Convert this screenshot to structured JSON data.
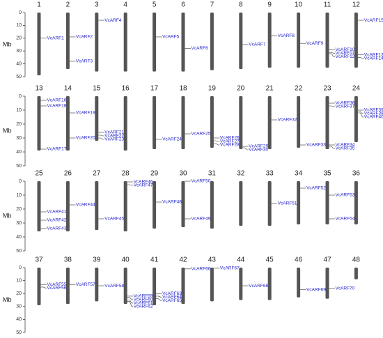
{
  "chart_data": [
    {
      "type": "chromosome",
      "ylabel": "Mb",
      "ylim": [
        0,
        50
      ],
      "yticks": [
        0,
        10,
        20,
        30,
        40,
        50
      ],
      "color": "#555555",
      "gene_color": "#2222cc",
      "chromosomes": [
        {
          "name": "1",
          "length": 49,
          "genes": [
            {
              "name": "VcARF1",
              "position": 20
            }
          ]
        },
        {
          "name": "2",
          "length": 44,
          "genes": [
            {
              "name": "VcARF2",
              "position": 19
            },
            {
              "name": "VcARF3",
              "position": 38
            }
          ]
        },
        {
          "name": "3",
          "length": 46,
          "genes": [
            {
              "name": "VcARF4",
              "position": 6
            }
          ]
        },
        {
          "name": "4",
          "length": 46,
          "genes": []
        },
        {
          "name": "5",
          "length": 46,
          "genes": [
            {
              "name": "VcARF5",
              "position": 19
            }
          ]
        },
        {
          "name": "6",
          "length": 46,
          "genes": [
            {
              "name": "VcARF6",
              "position": 28
            }
          ]
        },
        {
          "name": "7",
          "length": 45,
          "genes": []
        },
        {
          "name": "8",
          "length": 44,
          "genes": [
            {
              "name": "VcARF7",
              "position": 25
            }
          ]
        },
        {
          "name": "9",
          "length": 43,
          "genes": [
            {
              "name": "VcARF8",
              "position": 18
            }
          ]
        },
        {
          "name": "10",
          "length": 43,
          "genes": [
            {
              "name": "VcARF9",
              "position": 24
            }
          ]
        },
        {
          "name": "11",
          "length": 43,
          "genes": [
            {
              "name": "VcARF10",
              "position": 29
            },
            {
              "name": "VcARF11",
              "position": 31
            },
            {
              "name": "VcARF12",
              "position": 32
            }
          ]
        },
        {
          "name": "12",
          "length": 43,
          "genes": [
            {
              "name": "VcARF15",
              "position": 6
            },
            {
              "name": "VcARF13",
              "position": 33
            },
            {
              "name": "VcARF14",
              "position": 35
            }
          ]
        }
      ]
    },
    {
      "type": "chromosome",
      "ylabel": "Mb",
      "ylim": [
        0,
        50
      ],
      "yticks": [
        0,
        10,
        20,
        30,
        40,
        50
      ],
      "color": "#555555",
      "gene_color": "#2222cc",
      "chromosomes": [
        {
          "name": "13",
          "length": 39,
          "genes": [
            {
              "name": "VcARF16",
              "position": 3
            },
            {
              "name": "VcARF18",
              "position": 7
            },
            {
              "name": "VcARF17",
              "position": 38
            }
          ]
        },
        {
          "name": "14",
          "length": 39,
          "genes": [
            {
              "name": "VcARF19",
              "position": 12
            },
            {
              "name": "VcARF20",
              "position": 30
            }
          ]
        },
        {
          "name": "15",
          "length": 32,
          "genes": [
            {
              "name": "VcARF21",
              "position": 26
            },
            {
              "name": "VcARF22",
              "position": 28
            },
            {
              "name": "VcARF23",
              "position": 30
            }
          ]
        },
        {
          "name": "16",
          "length": 39,
          "genes": []
        },
        {
          "name": "17",
          "length": 38,
          "genes": [
            {
              "name": "VcARF24",
              "position": 31
            }
          ]
        },
        {
          "name": "18",
          "length": 38,
          "genes": [
            {
              "name": "VcARF25",
              "position": 27
            }
          ]
        },
        {
          "name": "19",
          "length": 37,
          "genes": [
            {
              "name": "VcARF26",
              "position": 30
            },
            {
              "name": "VcARF27",
              "position": 32
            },
            {
              "name": "VcARF28",
              "position": 34
            }
          ]
        },
        {
          "name": "20",
          "length": 38,
          "genes": [
            {
              "name": "VcARF29",
              "position": 36
            },
            {
              "name": "VcARF30",
              "position": 37
            }
          ]
        },
        {
          "name": "21",
          "length": 38,
          "genes": [
            {
              "name": "VcARF32",
              "position": 17
            }
          ]
        },
        {
          "name": "22",
          "length": 37,
          "genes": [
            {
              "name": "VcARF33",
              "position": 35
            }
          ]
        },
        {
          "name": "23",
          "length": 38,
          "genes": [
            {
              "name": "VcARF36",
              "position": 5
            },
            {
              "name": "VcARF37",
              "position": 7
            },
            {
              "name": "VcARF34",
              "position": 35
            },
            {
              "name": "VcARF35",
              "position": 36
            }
          ]
        },
        {
          "name": "24",
          "length": 33,
          "genes": [
            {
              "name": "VcARF39",
              "position": 10
            },
            {
              "name": "VcARF38",
              "position": 11
            },
            {
              "name": "VcARF40",
              "position": 12
            }
          ]
        }
      ]
    },
    {
      "type": "chromosome",
      "ylabel": "Mb",
      "ylim": [
        0,
        50
      ],
      "yticks": [
        0,
        10,
        20,
        30,
        40,
        50
      ],
      "color": "#555555",
      "gene_color": "#2222cc",
      "chromosomes": [
        {
          "name": "25",
          "length": 36,
          "genes": [
            {
              "name": "VcARF41",
              "position": 22
            },
            {
              "name": "VcARF42",
              "position": 28
            },
            {
              "name": "VcARF43",
              "position": 34
            }
          ]
        },
        {
          "name": "26",
          "length": 36,
          "genes": [
            {
              "name": "VcARF44",
              "position": 17
            }
          ]
        },
        {
          "name": "27",
          "length": 35,
          "genes": [
            {
              "name": "VcARF45",
              "position": 27
            }
          ]
        },
        {
          "name": "28",
          "length": 36,
          "genes": [
            {
              "name": "VcARF46",
              "position": 0.5
            },
            {
              "name": "VcARF47",
              "position": 2.5
            }
          ]
        },
        {
          "name": "29",
          "length": 34,
          "genes": [
            {
              "name": "VcARF48",
              "position": 15
            }
          ]
        },
        {
          "name": "30",
          "length": 33,
          "genes": [
            {
              "name": "VcARF50",
              "position": 0
            },
            {
              "name": "VcARF49",
              "position": 27
            }
          ]
        },
        {
          "name": "31",
          "length": 34,
          "genes": []
        },
        {
          "name": "32",
          "length": 32,
          "genes": []
        },
        {
          "name": "33",
          "length": 32,
          "genes": [
            {
              "name": "VcARF51",
              "position": 16
            }
          ]
        },
        {
          "name": "34",
          "length": 31,
          "genes": [
            {
              "name": "VcARF52",
              "position": 5
            }
          ]
        },
        {
          "name": "35",
          "length": 31,
          "genes": [
            {
              "name": "VcARF53",
              "position": 10
            },
            {
              "name": "VcARF54",
              "position": 27
            }
          ]
        },
        {
          "name": "36",
          "length": 31,
          "genes": []
        }
      ]
    },
    {
      "type": "chromosome",
      "ylabel": "Mb",
      "ylim": [
        0,
        50
      ],
      "yticks": [
        0,
        10,
        20,
        30,
        40,
        50
      ],
      "color": "#555555",
      "gene_color": "#2222cc",
      "chromosomes": [
        {
          "name": "37",
          "length": 29,
          "genes": [
            {
              "name": "VcARF55",
              "position": 13
            },
            {
              "name": "VcARF56",
              "position": 15
            }
          ]
        },
        {
          "name": "38",
          "length": 28,
          "genes": [
            {
              "name": "VcARF57",
              "position": 13
            }
          ]
        },
        {
          "name": "39",
          "length": 26,
          "genes": [
            {
              "name": "VcARF58",
              "position": 14
            }
          ]
        },
        {
          "name": "40",
          "length": 28,
          "genes": [
            {
              "name": "VcARF59",
              "position": 22
            },
            {
              "name": "VcARF60",
              "position": 23
            },
            {
              "name": "VcARF61",
              "position": 25
            },
            {
              "name": "VcARF62",
              "position": 26
            }
          ]
        },
        {
          "name": "41",
          "length": 29,
          "genes": [
            {
              "name": "VcARF63",
              "position": 20
            },
            {
              "name": "VcARF64",
              "position": 22
            },
            {
              "name": "VcARF65",
              "position": 24
            }
          ]
        },
        {
          "name": "42",
          "length": 28,
          "genes": [
            {
              "name": "VcARF66",
              "position": 1
            }
          ]
        },
        {
          "name": "43",
          "length": 26,
          "genes": [
            {
              "name": "VcARF67",
              "position": 0.5
            }
          ]
        },
        {
          "name": "44",
          "length": 25,
          "genes": [
            {
              "name": "VcARF68",
              "position": 14
            }
          ]
        },
        {
          "name": "45",
          "length": 25,
          "genes": []
        },
        {
          "name": "46",
          "length": 23,
          "genes": [
            {
              "name": "VcARF69",
              "position": 17
            }
          ]
        },
        {
          "name": "47",
          "length": 24,
          "genes": [
            {
              "name": "VcARF70",
              "position": 16
            }
          ]
        },
        {
          "name": "48",
          "length": 9,
          "genes": []
        }
      ]
    }
  ]
}
